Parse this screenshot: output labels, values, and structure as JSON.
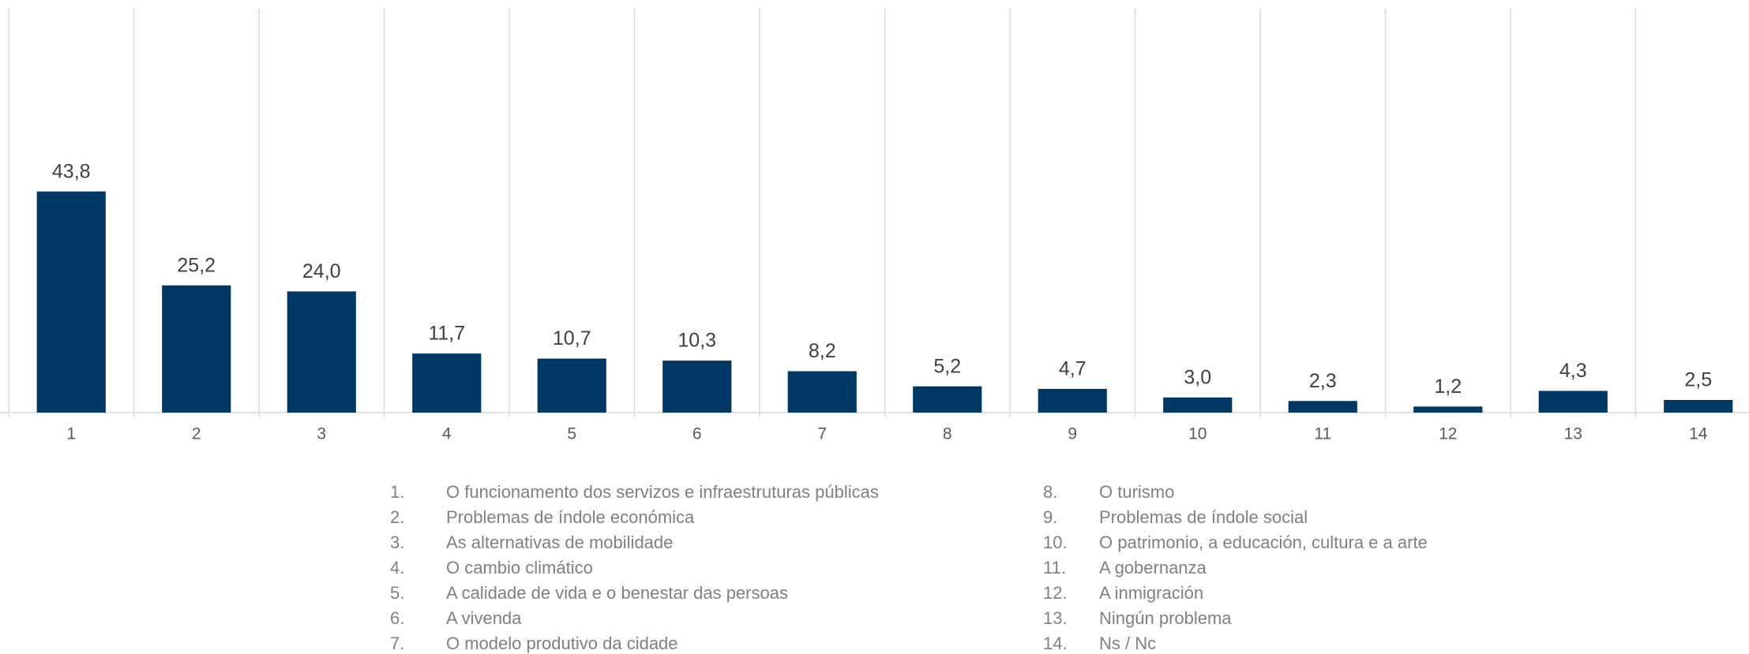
{
  "chart_data": {
    "type": "bar",
    "categories": [
      "1",
      "2",
      "3",
      "4",
      "5",
      "6",
      "7",
      "8",
      "9",
      "10",
      "11",
      "12",
      "13",
      "14"
    ],
    "values": [
      43.8,
      25.2,
      24.0,
      11.7,
      10.7,
      10.3,
      8.2,
      5.2,
      4.7,
      3.0,
      2.3,
      1.2,
      4.3,
      2.5
    ],
    "value_labels": [
      "43,8",
      "25,2",
      "24,0",
      "11,7",
      "10,7",
      "10,3",
      "8,2",
      "5,2",
      "4,7",
      "3,0",
      "2,3",
      "1,2",
      "4,3",
      "2,5"
    ],
    "color": "#003865",
    "ylim": [
      0,
      80
    ],
    "legend_columns": [
      [
        {
          "number": "1.",
          "label": "O funcionamento dos servizos e infraestruturas públicas"
        },
        {
          "number": "2.",
          "label": "Problemas de índole económica"
        },
        {
          "number": "3.",
          "label": "As alternativas de mobilidade"
        },
        {
          "number": "4.",
          "label": "O cambio climático"
        },
        {
          "number": "5.",
          "label": "A calidade de vida e o benestar das persoas"
        },
        {
          "number": "6.",
          "label": "A vivenda"
        },
        {
          "number": "7.",
          "label": "O modelo produtivo da cidade"
        }
      ],
      [
        {
          "number": "8.",
          "label": "O turismo"
        },
        {
          "number": "9.",
          "label": "Problemas de índole social"
        },
        {
          "number": "10.",
          "label": "O patrimonio, a educación, cultura e a arte"
        },
        {
          "number": "11.",
          "label": "A gobernanza"
        },
        {
          "number": "12.",
          "label": "A inmigración"
        },
        {
          "number": "13.",
          "label": "Ningún problema"
        },
        {
          "number": "14.",
          "label": "Ns / Nc"
        }
      ]
    ]
  }
}
